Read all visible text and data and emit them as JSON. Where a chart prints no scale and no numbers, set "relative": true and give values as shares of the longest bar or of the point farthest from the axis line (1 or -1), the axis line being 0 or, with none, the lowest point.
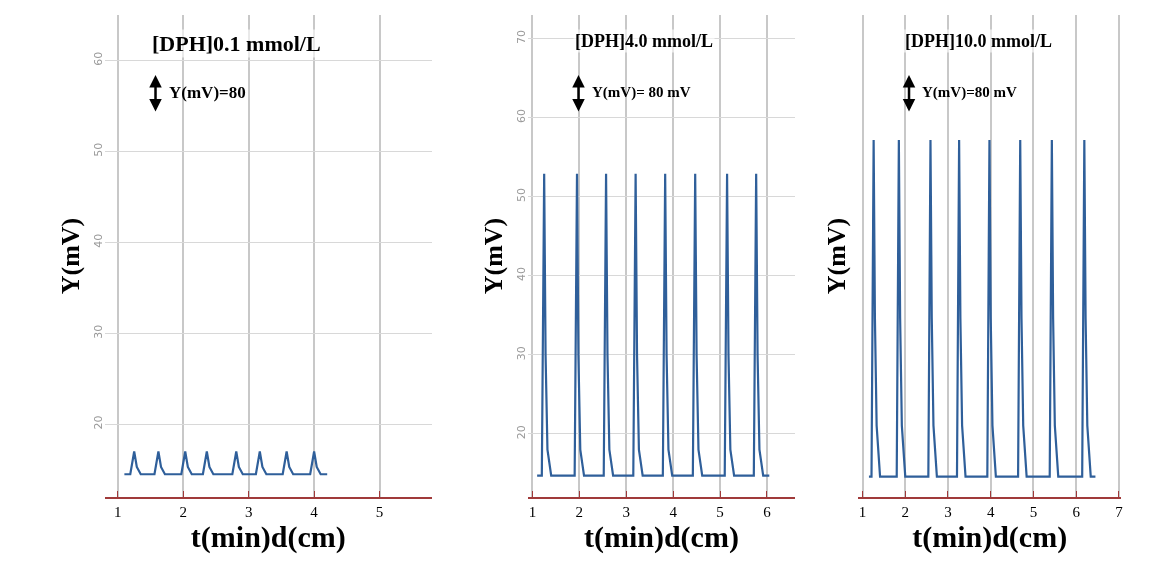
{
  "chart_data": [
    {
      "type": "line",
      "title": "[DPH]0.1 mmol/L",
      "xlabel": "t(min)d(cm)",
      "ylabel": "Y(mV)",
      "annotations": [
        "Y(mV)=80"
      ],
      "x": [
        1.1,
        1.19,
        1.25,
        1.29,
        1.35,
        1.56,
        1.62,
        1.66,
        1.72,
        1.97,
        2.03,
        2.07,
        2.13,
        2.3,
        2.36,
        2.4,
        2.46,
        2.75,
        2.81,
        2.85,
        2.91,
        3.11,
        3.17,
        3.21,
        3.27,
        3.52,
        3.58,
        3.62,
        3.68,
        3.94,
        4.0,
        4.04,
        4.1,
        4.2
      ],
      "series": [
        {
          "color": "#2f5f9a",
          "values": [
            14.5,
            14.5,
            17.0,
            15.3,
            14.5,
            14.5,
            17.0,
            15.3,
            14.5,
            14.5,
            17.0,
            15.3,
            14.5,
            14.5,
            17.0,
            15.3,
            14.5,
            14.5,
            17.0,
            15.3,
            14.5,
            14.5,
            17.0,
            15.3,
            14.5,
            14.5,
            17.0,
            15.3,
            14.5,
            14.5,
            17.0,
            15.3,
            14.5,
            14.5
          ]
        }
      ],
      "xlim": [
        0.8,
        5.8
      ],
      "xticks": [
        1,
        2,
        3,
        4,
        5
      ],
      "ylim": [
        12,
        65
      ],
      "yticks": [
        20,
        30,
        40,
        50,
        60
      ],
      "grid": true,
      "marker": "none"
    },
    {
      "type": "line",
      "title": "[DPH]4.0 mmol/L",
      "xlabel": "t(min)d(cm)",
      "ylabel": "Y(mV)",
      "annotations": [
        "Y(mV)= 80 mV"
      ],
      "x": [
        1.1,
        1.2,
        1.25,
        1.28,
        1.32,
        1.4,
        1.9,
        1.95,
        1.98,
        2.02,
        2.1,
        2.52,
        2.57,
        2.6,
        2.64,
        2.72,
        3.15,
        3.2,
        3.23,
        3.27,
        3.35,
        3.78,
        3.83,
        3.86,
        3.9,
        3.98,
        4.42,
        4.47,
        4.5,
        4.54,
        4.62,
        5.1,
        5.15,
        5.18,
        5.22,
        5.3,
        5.72,
        5.77,
        5.8,
        5.84,
        5.92,
        6.05
      ],
      "series": [
        {
          "color": "#2f5f9a",
          "values": [
            14.7,
            14.7,
            52.9,
            30,
            18,
            14.7,
            14.7,
            52.9,
            30,
            18,
            14.7,
            14.7,
            52.9,
            30,
            18,
            14.7,
            14.7,
            52.9,
            30,
            18,
            14.7,
            14.7,
            52.9,
            30,
            18,
            14.7,
            14.7,
            52.9,
            30,
            18,
            14.7,
            14.7,
            52.9,
            30,
            18,
            14.7,
            14.7,
            52.9,
            30,
            18,
            14.7,
            14.7
          ]
        }
      ],
      "xlim": [
        0.9,
        6.6
      ],
      "xticks": [
        1,
        2,
        3,
        4,
        5,
        6
      ],
      "ylim": [
        12,
        73
      ],
      "yticks": [
        20,
        30,
        40,
        50,
        60,
        70
      ],
      "grid": true,
      "marker": "none"
    },
    {
      "type": "line",
      "title": "[DPH]10.0 mmol/L",
      "xlabel": "t(min)d(cm)",
      "ylabel": "Y(mV)",
      "annotations": [
        "Y(mV)=80 mV"
      ],
      "relative": true,
      "x": [
        1.15,
        1.21,
        1.26,
        1.29,
        1.33,
        1.41,
        1.8,
        1.85,
        1.88,
        1.92,
        2.0,
        2.54,
        2.59,
        2.62,
        2.66,
        2.74,
        3.21,
        3.26,
        3.29,
        3.33,
        3.41,
        3.92,
        3.97,
        4.0,
        4.04,
        4.12,
        4.64,
        4.69,
        4.72,
        4.76,
        4.84,
        5.38,
        5.43,
        5.46,
        5.5,
        5.58,
        6.14,
        6.19,
        6.22,
        6.26,
        6.34,
        6.45
      ],
      "series": [
        {
          "color": "#2f5f9a",
          "values": [
            0.057,
            0.057,
            1,
            0.5,
            0.2,
            0.057,
            0.057,
            1,
            0.5,
            0.2,
            0.057,
            0.057,
            1,
            0.5,
            0.2,
            0.057,
            0.057,
            1,
            0.5,
            0.2,
            0.057,
            0.057,
            1,
            0.5,
            0.2,
            0.057,
            0.057,
            1,
            0.5,
            0.2,
            0.057,
            0.057,
            1,
            0.5,
            0.2,
            0.057,
            0.057,
            1,
            0.5,
            0.2,
            0.057,
            0.057
          ]
        }
      ],
      "xlim": [
        0.9,
        7.05
      ],
      "xticks": [
        1,
        2,
        3,
        4,
        5,
        6,
        7
      ],
      "grid": "x",
      "marker": "none"
    }
  ]
}
